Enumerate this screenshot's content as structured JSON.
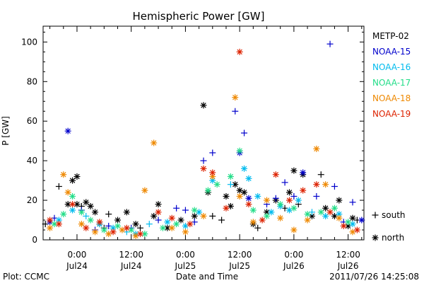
{
  "chart_data": {
    "type": "scatter",
    "title": "Hemispheric Power [GW]",
    "ylabel": "P [GW]",
    "xlabel": "Date and Time",
    "ylim": [
      0,
      108
    ],
    "yticks": [
      0,
      20,
      40,
      60,
      80,
      100
    ],
    "xlim": [
      -7.5,
      63.5
    ],
    "x_unit": "hours since Jul24 00:00",
    "xticks": [
      {
        "x": 0,
        "time": "0:00",
        "date": "Jul24"
      },
      {
        "x": 12,
        "time": "12:00",
        "date": "Jul24"
      },
      {
        "x": 24,
        "time": "0:00",
        "date": "Jul25"
      },
      {
        "x": 36,
        "time": "12:00",
        "date": "Jul25"
      },
      {
        "x": 48,
        "time": "0:00",
        "date": "Jul26"
      },
      {
        "x": 60,
        "time": "12:00",
        "date": "Jul26"
      }
    ],
    "legend_position": "right",
    "marker_legend": [
      {
        "marker": "plus",
        "label": "south"
      },
      {
        "marker": "star",
        "label": "north"
      }
    ],
    "series": [
      {
        "name": "METP-02",
        "color": "#000000",
        "points": [
          [
            -7,
            8,
            "plus"
          ],
          [
            -4,
            27,
            "plus"
          ],
          [
            -2,
            18,
            "star"
          ],
          [
            -1,
            30,
            "star"
          ],
          [
            0,
            32,
            "star"
          ],
          [
            0,
            18,
            "star"
          ],
          [
            1,
            17,
            "plus"
          ],
          [
            2,
            19,
            "star"
          ],
          [
            3,
            17,
            "star"
          ],
          [
            4,
            14,
            "star"
          ],
          [
            5,
            8,
            "star"
          ],
          [
            6,
            6,
            "plus"
          ],
          [
            7,
            13,
            "plus"
          ],
          [
            9,
            10,
            "star"
          ],
          [
            11,
            14,
            "star"
          ],
          [
            13,
            8,
            "star"
          ],
          [
            14,
            6,
            "plus"
          ],
          [
            17,
            12,
            "star"
          ],
          [
            18,
            18,
            "star"
          ],
          [
            20,
            6,
            "star"
          ],
          [
            23,
            10,
            "star"
          ],
          [
            26,
            12,
            "star"
          ],
          [
            28,
            68,
            "star"
          ],
          [
            29,
            24,
            "star"
          ],
          [
            30,
            12,
            "plus"
          ],
          [
            32,
            10,
            "plus"
          ],
          [
            33,
            22,
            "star"
          ],
          [
            34,
            17,
            "star"
          ],
          [
            35,
            28,
            "star"
          ],
          [
            36,
            25,
            "star"
          ],
          [
            37,
            24,
            "star"
          ],
          [
            39,
            8,
            "star"
          ],
          [
            40,
            6,
            "plus"
          ],
          [
            42,
            14,
            "star"
          ],
          [
            44,
            20,
            "star"
          ],
          [
            46,
            16,
            "plus"
          ],
          [
            47,
            24,
            "star"
          ],
          [
            48,
            35,
            "star"
          ],
          [
            49,
            18,
            "plus"
          ],
          [
            50,
            33,
            "star"
          ],
          [
            52,
            12,
            "star"
          ],
          [
            54,
            33,
            "plus"
          ],
          [
            55,
            16,
            "star"
          ],
          [
            57,
            12,
            "star"
          ],
          [
            58,
            20,
            "star"
          ],
          [
            60,
            7,
            "star"
          ],
          [
            61,
            11,
            "star"
          ],
          [
            62,
            10,
            "plus"
          ]
        ]
      },
      {
        "name": "NOAA-15",
        "color": "#0000cc",
        "points": [
          [
            -6,
            9,
            "star"
          ],
          [
            -5,
            11,
            "plus"
          ],
          [
            -2,
            55,
            "star"
          ],
          [
            1,
            15,
            "plus"
          ],
          [
            4,
            5,
            "plus"
          ],
          [
            7,
            7,
            "plus"
          ],
          [
            12,
            6,
            "plus"
          ],
          [
            18,
            10,
            "plus"
          ],
          [
            22,
            16,
            "plus"
          ],
          [
            24,
            15,
            "plus"
          ],
          [
            26,
            9,
            "plus"
          ],
          [
            28,
            40,
            "plus"
          ],
          [
            30,
            44,
            "plus"
          ],
          [
            35,
            65,
            "plus"
          ],
          [
            37,
            54,
            "plus"
          ],
          [
            36,
            44,
            "star"
          ],
          [
            38,
            21,
            "star"
          ],
          [
            42,
            18,
            "plus"
          ],
          [
            44,
            21,
            "plus"
          ],
          [
            46,
            29,
            "plus"
          ],
          [
            48,
            22,
            "plus"
          ],
          [
            50,
            34,
            "star"
          ],
          [
            53,
            22,
            "plus"
          ],
          [
            56,
            99,
            "plus"
          ],
          [
            57,
            27,
            "plus"
          ],
          [
            59,
            9,
            "plus"
          ],
          [
            61,
            19,
            "plus"
          ],
          [
            63,
            10,
            "star"
          ]
        ]
      },
      {
        "name": "NOAA-16",
        "color": "#00bbee",
        "points": [
          [
            -4,
            10,
            "star"
          ],
          [
            -1,
            15,
            "star"
          ],
          [
            2,
            12,
            "plus"
          ],
          [
            5,
            8,
            "star"
          ],
          [
            8,
            6,
            "star"
          ],
          [
            11,
            4,
            "plus"
          ],
          [
            13,
            3,
            "star"
          ],
          [
            16,
            8,
            "plus"
          ],
          [
            20,
            9,
            "star"
          ],
          [
            24,
            7,
            "star"
          ],
          [
            27,
            14,
            "star"
          ],
          [
            30,
            30,
            "star"
          ],
          [
            34,
            28,
            "plus"
          ],
          [
            37,
            36,
            "star"
          ],
          [
            38,
            31,
            "star"
          ],
          [
            40,
            22,
            "star"
          ],
          [
            43,
            14,
            "star"
          ],
          [
            45,
            17,
            "star"
          ],
          [
            47,
            15,
            "star"
          ],
          [
            49,
            20,
            "star"
          ],
          [
            52,
            14,
            "plus"
          ],
          [
            55,
            12,
            "star"
          ],
          [
            58,
            13,
            "star"
          ],
          [
            61,
            8,
            "star"
          ]
        ]
      },
      {
        "name": "NOAA-17",
        "color": "#22dd88",
        "points": [
          [
            -5,
            8,
            "star"
          ],
          [
            -3,
            13,
            "star"
          ],
          [
            -1,
            22,
            "star"
          ],
          [
            1,
            14,
            "star"
          ],
          [
            3,
            10,
            "star"
          ],
          [
            6,
            5,
            "star"
          ],
          [
            9,
            7,
            "star"
          ],
          [
            12,
            5,
            "star"
          ],
          [
            15,
            3,
            "star"
          ],
          [
            19,
            6,
            "star"
          ],
          [
            22,
            8,
            "star"
          ],
          [
            26,
            15,
            "star"
          ],
          [
            29,
            25,
            "star"
          ],
          [
            31,
            28,
            "star"
          ],
          [
            34,
            32,
            "star"
          ],
          [
            36,
            45,
            "star"
          ],
          [
            39,
            15,
            "star"
          ],
          [
            42,
            12,
            "star"
          ],
          [
            45,
            18,
            "star"
          ],
          [
            48,
            16,
            "star"
          ],
          [
            51,
            13,
            "star"
          ],
          [
            54,
            14,
            "star"
          ],
          [
            57,
            16,
            "star"
          ],
          [
            60,
            9,
            "star"
          ]
        ]
      },
      {
        "name": "NOAA-18",
        "color": "#ee8800",
        "points": [
          [
            -6,
            6,
            "star"
          ],
          [
            -3,
            33,
            "star"
          ],
          [
            -2,
            24,
            "star"
          ],
          [
            1,
            8,
            "star"
          ],
          [
            4,
            4,
            "star"
          ],
          [
            7,
            3,
            "star"
          ],
          [
            10,
            5,
            "star"
          ],
          [
            13,
            2,
            "star"
          ],
          [
            15,
            25,
            "star"
          ],
          [
            17,
            49,
            "star"
          ],
          [
            21,
            6,
            "star"
          ],
          [
            24,
            4,
            "star"
          ],
          [
            28,
            12,
            "star"
          ],
          [
            30,
            32,
            "star"
          ],
          [
            35,
            72,
            "star"
          ],
          [
            36,
            22,
            "star"
          ],
          [
            39,
            9,
            "star"
          ],
          [
            42,
            20,
            "star"
          ],
          [
            45,
            11,
            "star"
          ],
          [
            48,
            5,
            "star"
          ],
          [
            51,
            10,
            "star"
          ],
          [
            53,
            46,
            "star"
          ],
          [
            55,
            28,
            "star"
          ],
          [
            58,
            11,
            "star"
          ],
          [
            61,
            4,
            "star"
          ]
        ]
      },
      {
        "name": "NOAA-19",
        "color": "#dd2200",
        "points": [
          [
            -6,
            10,
            "star"
          ],
          [
            -4,
            8,
            "star"
          ],
          [
            -1,
            18,
            "star"
          ],
          [
            2,
            6,
            "star"
          ],
          [
            5,
            9,
            "star"
          ],
          [
            8,
            4,
            "star"
          ],
          [
            11,
            6,
            "star"
          ],
          [
            14,
            3,
            "star"
          ],
          [
            18,
            14,
            "star"
          ],
          [
            21,
            11,
            "star"
          ],
          [
            25,
            8,
            "star"
          ],
          [
            28,
            36,
            "star"
          ],
          [
            30,
            34,
            "star"
          ],
          [
            33,
            16,
            "star"
          ],
          [
            36,
            95,
            "star"
          ],
          [
            38,
            18,
            "star"
          ],
          [
            41,
            10,
            "star"
          ],
          [
            44,
            33,
            "star"
          ],
          [
            47,
            20,
            "star"
          ],
          [
            50,
            25,
            "star"
          ],
          [
            53,
            28,
            "star"
          ],
          [
            56,
            14,
            "star"
          ],
          [
            59,
            7,
            "star"
          ],
          [
            62,
            5,
            "star"
          ]
        ]
      }
    ]
  },
  "footer": {
    "left": "Plot: CCMC",
    "right": "2011/07/26 14:25:08"
  }
}
